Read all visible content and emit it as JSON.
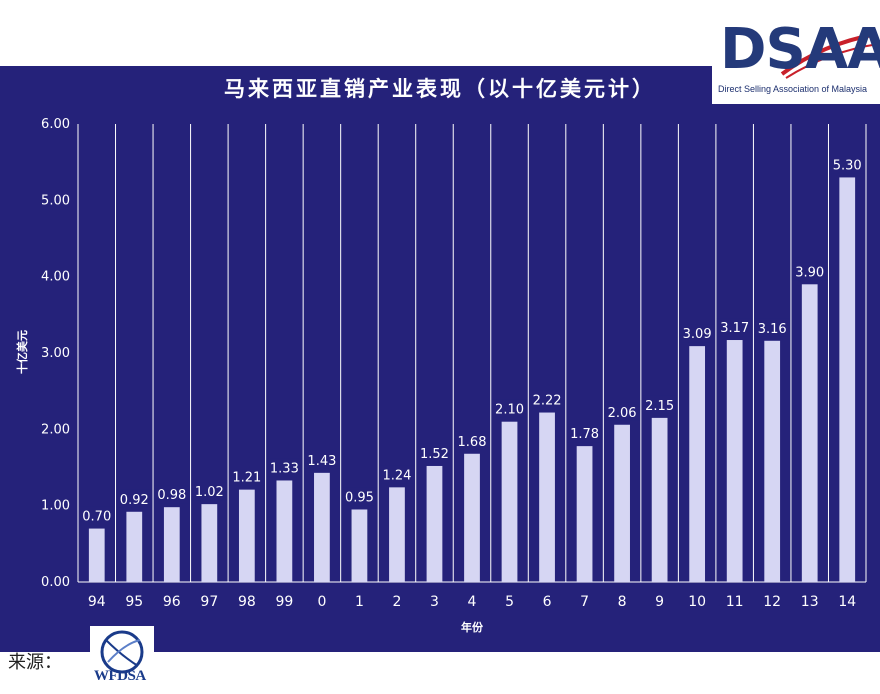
{
  "chart_data": {
    "type": "bar",
    "title": "马来西亚直销产业表现（以十亿美元计）",
    "xlabel": "年份",
    "ylabel": "十亿美元",
    "ylim": [
      0,
      6
    ],
    "yticks": [
      "0.00",
      "1.00",
      "2.00",
      "3.00",
      "4.00",
      "5.00",
      "6.00"
    ],
    "categories": [
      "94",
      "95",
      "96",
      "97",
      "98",
      "99",
      "0",
      "1",
      "2",
      "3",
      "4",
      "5",
      "6",
      "7",
      "8",
      "9",
      "10",
      "11",
      "12",
      "13",
      "14"
    ],
    "values": [
      0.7,
      0.92,
      0.98,
      1.02,
      1.21,
      1.33,
      1.43,
      0.95,
      1.24,
      1.52,
      1.68,
      2.1,
      2.22,
      1.78,
      2.06,
      2.15,
      3.09,
      3.17,
      3.16,
      3.9,
      5.3
    ],
    "value_labels": [
      "0.70",
      "0.92",
      "0.98",
      "1.02",
      "1.21",
      "1.33",
      "1.43",
      "0.95",
      "1.24",
      "1.52",
      "1.68",
      "2.10",
      "2.22",
      "1.78",
      "2.06",
      "2.15",
      "3.09",
      "3.17",
      "3.16",
      "3.90",
      "5.30"
    ],
    "grid": "vertical",
    "colors": {
      "background": "#25227a",
      "bar": "#d6d6f3",
      "text": "#ffffff"
    }
  },
  "logo": {
    "text": "DSAA",
    "subtitle": "Direct Selling Association of Malaysia"
  },
  "source": {
    "label": "来源：",
    "logo_text": "WFDSA"
  }
}
